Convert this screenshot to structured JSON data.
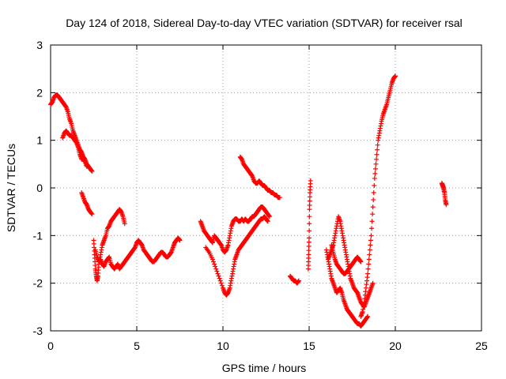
{
  "chart_data": {
    "type": "scatter",
    "title": "Day 124 of 2018, Sidereal Day-to-day VTEC variation (SDTVAR) for receiver rsal",
    "xlabel": "GPS time / hours",
    "ylabel": "SDTVAR / TECUs",
    "xlim": [
      0,
      25
    ],
    "ylim": [
      -3,
      3
    ],
    "xticks": [
      0,
      5,
      10,
      15,
      20,
      25
    ],
    "yticks": [
      -3,
      -2,
      -1,
      0,
      1,
      2,
      3
    ],
    "grid": true,
    "marker": "+",
    "marker_color": "#ff0000",
    "segments": [
      {
        "x": [
          0.0,
          0.1,
          0.2,
          0.3,
          0.4,
          0.5,
          0.6,
          0.7,
          0.8,
          0.9,
          1.0,
          1.1,
          1.2,
          1.3,
          1.4,
          1.5,
          1.6,
          1.7,
          1.8,
          1.9,
          2.0,
          2.1,
          2.2,
          2.3,
          2.4
        ],
        "y": [
          1.75,
          1.8,
          1.9,
          1.95,
          1.95,
          1.9,
          1.85,
          1.8,
          1.75,
          1.7,
          1.6,
          1.45,
          1.35,
          1.2,
          1.1,
          1.0,
          0.9,
          0.8,
          0.75,
          0.65,
          0.6,
          0.5,
          0.45,
          0.4,
          0.35
        ]
      },
      {
        "x": [
          0.7,
          0.8,
          0.9,
          1.0,
          1.1,
          1.2,
          1.3,
          1.4,
          1.5,
          1.6,
          1.7,
          1.8,
          1.9,
          2.0,
          2.1
        ],
        "y": [
          1.05,
          1.15,
          1.2,
          1.15,
          1.1,
          1.1,
          1.05,
          1.0,
          0.95,
          0.85,
          0.7,
          0.6,
          0.6,
          0.55,
          0.45
        ]
      },
      {
        "x": [
          1.8,
          1.9,
          2.0,
          2.1,
          2.2,
          2.3,
          2.4
        ],
        "y": [
          -0.1,
          -0.2,
          -0.3,
          -0.35,
          -0.45,
          -0.5,
          -0.55
        ]
      },
      {
        "x": [
          2.5,
          2.55,
          2.6,
          2.65,
          2.7,
          2.75,
          2.8,
          2.9,
          3.0,
          3.1,
          3.2,
          3.3,
          3.4,
          3.5,
          3.6,
          3.7,
          3.8,
          3.9,
          4.0,
          4.1,
          4.2,
          4.3
        ],
        "y": [
          -1.1,
          -1.4,
          -1.7,
          -1.85,
          -1.95,
          -1.85,
          -1.6,
          -1.4,
          -1.2,
          -1.1,
          -1.0,
          -0.85,
          -0.8,
          -0.7,
          -0.65,
          -0.6,
          -0.55,
          -0.5,
          -0.45,
          -0.5,
          -0.6,
          -0.75
        ]
      },
      {
        "x": [
          2.6,
          2.7,
          2.8,
          2.9,
          3.0,
          3.1,
          3.2,
          3.3,
          3.4,
          3.5,
          3.6,
          3.7,
          3.8,
          3.9,
          4.0,
          4.1,
          4.2,
          4.3,
          4.4,
          4.5,
          4.6,
          4.7,
          4.8,
          4.9,
          5.0
        ],
        "y": [
          -1.3,
          -1.45,
          -1.55,
          -1.5,
          -1.6,
          -1.65,
          -1.55,
          -1.5,
          -1.45,
          -1.6,
          -1.65,
          -1.7,
          -1.65,
          -1.6,
          -1.7,
          -1.65,
          -1.6,
          -1.55,
          -1.5,
          -1.45,
          -1.4,
          -1.35,
          -1.3,
          -1.25,
          -1.15
        ]
      },
      {
        "x": [
          5.0,
          5.1,
          5.2,
          5.3,
          5.4,
          5.5,
          5.6,
          5.7,
          5.8,
          5.9,
          6.0,
          6.1,
          6.2,
          6.3,
          6.4,
          6.5,
          6.6,
          6.7,
          6.8,
          6.9,
          7.0,
          7.1,
          7.2,
          7.3,
          7.4,
          7.5
        ],
        "y": [
          -1.15,
          -1.1,
          -1.15,
          -1.2,
          -1.3,
          -1.35,
          -1.4,
          -1.45,
          -1.5,
          -1.55,
          -1.55,
          -1.5,
          -1.45,
          -1.4,
          -1.35,
          -1.35,
          -1.4,
          -1.45,
          -1.45,
          -1.4,
          -1.35,
          -1.25,
          -1.15,
          -1.1,
          -1.05,
          -1.1
        ]
      },
      {
        "x": [
          8.7,
          8.8,
          8.9,
          9.0,
          9.1,
          9.2,
          9.3,
          9.4,
          9.5,
          9.6,
          9.7,
          9.8,
          9.9,
          10.0,
          10.1,
          10.2,
          10.3,
          10.4,
          10.5,
          10.6,
          10.7,
          10.8,
          10.9,
          11.0,
          11.1,
          11.2,
          11.3,
          11.4,
          11.5,
          11.6,
          11.7,
          11.8,
          11.9,
          12.0,
          12.1,
          12.2,
          12.3,
          12.4,
          12.5,
          12.6,
          12.7
        ],
        "y": [
          -0.7,
          -0.8,
          -0.9,
          -0.95,
          -1.0,
          -1.05,
          -1.1,
          -1.15,
          -1.0,
          -1.05,
          -1.1,
          -1.15,
          -1.2,
          -1.3,
          -1.35,
          -1.3,
          -1.2,
          -1.0,
          -0.8,
          -0.7,
          -0.65,
          -0.65,
          -0.7,
          -0.7,
          -0.65,
          -0.7,
          -0.65,
          -0.7,
          -0.7,
          -0.65,
          -0.6,
          -0.6,
          -0.55,
          -0.5,
          -0.45,
          -0.4,
          -0.4,
          -0.45,
          -0.5,
          -0.55,
          -0.6
        ]
      },
      {
        "x": [
          9.0,
          9.2,
          9.4,
          9.6,
          9.8,
          10.0,
          10.1,
          10.2,
          10.3,
          10.4,
          10.5,
          10.6,
          10.7,
          10.8,
          10.9,
          11.0,
          11.1,
          11.2,
          11.3,
          11.4,
          11.5,
          11.6,
          11.7,
          11.8,
          11.9,
          12.0,
          12.1,
          12.2,
          12.3,
          12.4,
          12.5,
          12.6
        ],
        "y": [
          -1.25,
          -1.35,
          -1.5,
          -1.7,
          -1.9,
          -2.1,
          -2.2,
          -2.25,
          -2.2,
          -2.1,
          -1.9,
          -1.7,
          -1.5,
          -1.4,
          -1.3,
          -1.25,
          -1.2,
          -1.15,
          -1.1,
          -1.05,
          -1.0,
          -0.95,
          -0.9,
          -0.85,
          -0.8,
          -0.75,
          -0.7,
          -0.65,
          -0.65,
          -0.6,
          -0.65,
          -0.7
        ]
      },
      {
        "x": [
          11.0,
          11.1,
          11.2,
          11.3,
          11.4,
          11.5,
          11.6,
          11.7,
          11.8,
          11.9,
          12.0,
          12.1,
          12.2,
          12.3,
          12.4,
          12.5,
          12.6,
          12.7,
          12.8,
          12.9,
          13.0,
          13.1,
          13.2,
          13.3
        ],
        "y": [
          0.65,
          0.6,
          0.5,
          0.45,
          0.4,
          0.35,
          0.3,
          0.25,
          0.15,
          0.1,
          0.1,
          0.15,
          0.1,
          0.05,
          0.05,
          0.0,
          -0.05,
          -0.05,
          -0.1,
          -0.1,
          -0.15,
          -0.15,
          -0.2,
          -0.2
        ]
      },
      {
        "x": [
          13.9,
          14.0,
          14.1,
          14.2,
          14.3,
          14.4
        ],
        "y": [
          -1.85,
          -1.9,
          -1.95,
          -1.95,
          -2.0,
          -1.95
        ]
      },
      {
        "x": [
          14.95,
          14.97,
          15.0,
          15.02,
          15.05,
          15.08
        ],
        "y": [
          -1.7,
          -1.4,
          -1.05,
          -0.45,
          -0.1,
          0.15
        ]
      },
      {
        "x": [
          16.0,
          16.1,
          16.2,
          16.3,
          16.4,
          16.5,
          16.6,
          16.7,
          16.8,
          16.9,
          17.0,
          17.1,
          17.2,
          17.3,
          17.4,
          17.5,
          17.6,
          17.7,
          17.8,
          17.9,
          18.0,
          18.1,
          18.2,
          18.3,
          18.4
        ],
        "y": [
          -1.3,
          -1.5,
          -1.7,
          -1.9,
          -2.0,
          -2.1,
          -2.2,
          -2.15,
          -2.1,
          -2.2,
          -2.35,
          -2.45,
          -2.55,
          -2.6,
          -2.65,
          -2.7,
          -2.75,
          -2.8,
          -2.85,
          -2.85,
          -2.9,
          -2.85,
          -2.8,
          -2.75,
          -2.7
        ]
      },
      {
        "x": [
          16.1,
          16.2,
          16.3,
          16.4,
          16.5,
          16.6,
          16.7,
          16.8,
          16.9,
          17.0,
          17.1,
          17.2,
          17.3,
          17.4,
          17.5,
          17.6,
          17.7,
          17.8,
          17.9,
          18.0,
          18.1,
          18.2,
          18.3,
          18.4,
          18.5,
          18.6,
          18.7
        ],
        "y": [
          -1.5,
          -1.4,
          -1.3,
          -1.2,
          -1.0,
          -0.8,
          -0.6,
          -0.7,
          -0.9,
          -1.1,
          -1.3,
          -1.5,
          -1.7,
          -1.9,
          -2.0,
          -2.1,
          -2.15,
          -2.2,
          -2.3,
          -2.4,
          -2.45,
          -2.5,
          -2.4,
          -2.3,
          -2.2,
          -2.1,
          -2.0
        ]
      },
      {
        "x": [
          16.3,
          16.4,
          16.5,
          16.6,
          16.7,
          16.8,
          16.9,
          17.0,
          17.1,
          17.2,
          17.3,
          17.4,
          17.5,
          17.6,
          17.7,
          17.8,
          17.9,
          18.0
        ],
        "y": [
          -1.2,
          -1.35,
          -1.5,
          -1.6,
          -1.65,
          -1.7,
          -1.75,
          -1.8,
          -1.8,
          -1.75,
          -1.7,
          -1.65,
          -1.6,
          -1.55,
          -1.5,
          -1.45,
          -1.5,
          -1.55
        ]
      },
      {
        "x": [
          18.0,
          18.1,
          18.2,
          18.3,
          18.4,
          18.5,
          18.6,
          18.7,
          18.8,
          18.9,
          19.0,
          19.1,
          19.2,
          19.3,
          19.4,
          19.5,
          19.6,
          19.7,
          19.8,
          19.9,
          20.0
        ],
        "y": [
          -2.7,
          -2.6,
          -2.4,
          -2.1,
          -1.8,
          -1.4,
          -1.0,
          -0.4,
          0.2,
          0.6,
          1.0,
          1.2,
          1.4,
          1.55,
          1.65,
          1.75,
          1.9,
          2.05,
          2.2,
          2.3,
          2.35
        ]
      },
      {
        "x": [
          22.7,
          22.75,
          22.8,
          22.85,
          22.9,
          22.95
        ],
        "y": [
          0.1,
          0.05,
          0.0,
          -0.1,
          -0.25,
          -0.35
        ]
      }
    ]
  }
}
